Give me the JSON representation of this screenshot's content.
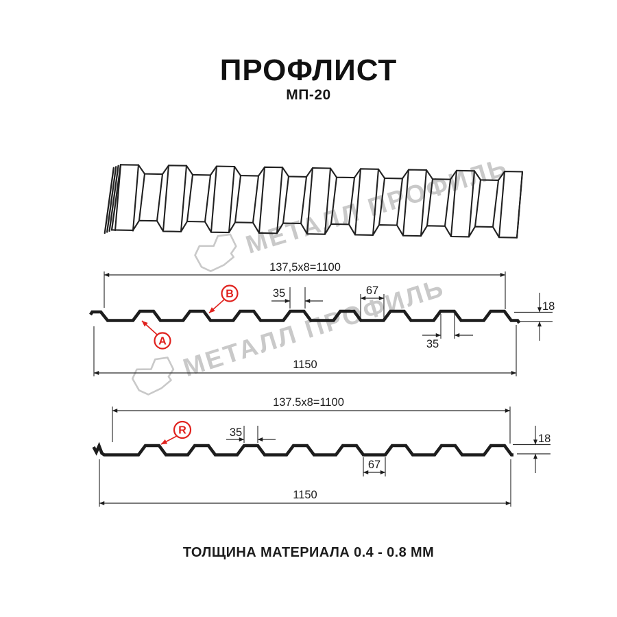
{
  "header": {
    "title": "ПРОФЛИСТ",
    "subtitle": "МП-20"
  },
  "footer": {
    "note": "ТОЛЩИНА МАТЕРИАЛА 0.4 - 0.8 ММ"
  },
  "watermark": {
    "text": "МЕТАЛЛ ПРОФИЛЬ"
  },
  "colors": {
    "line": "#1d1d1d",
    "dim": "#2b2b2b",
    "red": "#e0211d",
    "watermark": "#c9c9c9"
  },
  "drawing1": {
    "dims": {
      "coverage": "137,5x8=1100",
      "rib_top_width": "35",
      "valley_width": "67",
      "rib_top_width_2": "35",
      "height": "18",
      "overall_width": "1150"
    },
    "labels": {
      "a": "A",
      "b": "B"
    }
  },
  "drawing2": {
    "dims": {
      "coverage": "137.5x8=1100",
      "rib_top_width": "35",
      "valley_width": "67",
      "height": "18",
      "overall_width": "1150"
    },
    "labels": {
      "r": "R"
    }
  }
}
